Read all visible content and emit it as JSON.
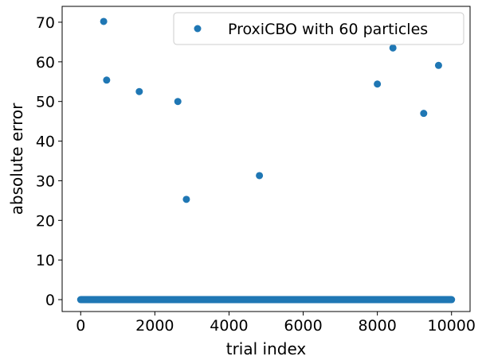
{
  "chart_data": {
    "type": "scatter",
    "xlabel": "trial index",
    "ylabel": "absolute error",
    "xlim": [
      -500,
      10500
    ],
    "ylim": [
      -3,
      74
    ],
    "xticks": [
      0,
      2000,
      4000,
      6000,
      8000,
      10000
    ],
    "xtick_labels": [
      "0",
      "2000",
      "4000",
      "6000",
      "8000",
      "10000"
    ],
    "yticks": [
      0,
      10,
      20,
      30,
      40,
      50,
      60,
      70
    ],
    "ytick_labels": [
      "0",
      "10",
      "20",
      "30",
      "40",
      "50",
      "60",
      "70"
    ],
    "grid": false,
    "legend": {
      "position": "top-right",
      "entries": [
        "ProxiCBO with 60 particles"
      ]
    },
    "baseline": {
      "x_range": [
        0,
        10000
      ],
      "y": 0,
      "count": 10000
    },
    "series": [
      {
        "name": "ProxiCBO with 60 particles",
        "color": "#1f77b4",
        "points": [
          {
            "x": 620,
            "y": 70.2
          },
          {
            "x": 700,
            "y": 55.4
          },
          {
            "x": 1580,
            "y": 52.5
          },
          {
            "x": 2620,
            "y": 50.0
          },
          {
            "x": 2850,
            "y": 25.3
          },
          {
            "x": 4820,
            "y": 31.3
          },
          {
            "x": 8000,
            "y": 54.4
          },
          {
            "x": 8420,
            "y": 63.5
          },
          {
            "x": 9250,
            "y": 47.0
          },
          {
            "x": 9650,
            "y": 59.1
          }
        ]
      }
    ]
  }
}
